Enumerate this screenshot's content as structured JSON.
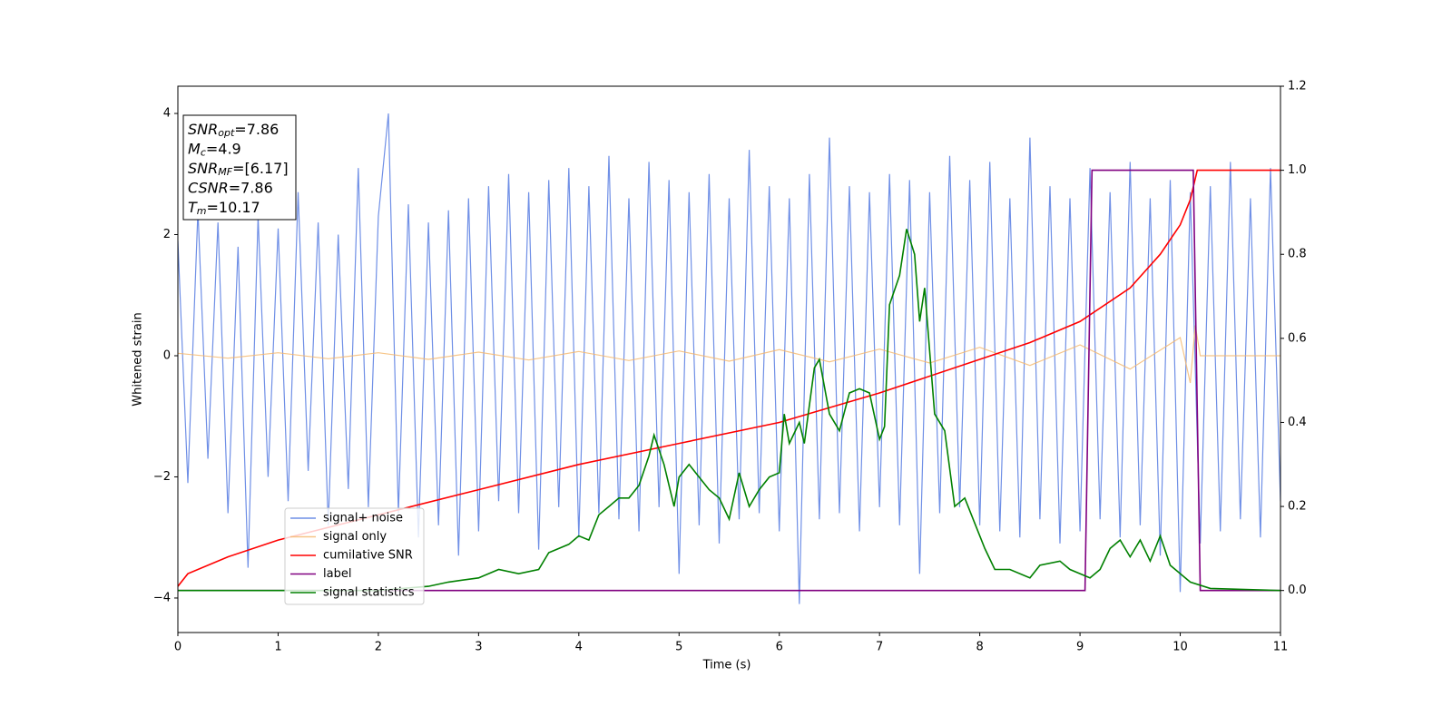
{
  "chart_data": {
    "type": "line",
    "xlabel": "Time (s)",
    "ylabel": "Whitened strain",
    "xlim": [
      0,
      11
    ],
    "xticks": [
      0,
      1,
      2,
      3,
      4,
      5,
      6,
      7,
      8,
      9,
      10,
      11
    ],
    "ylim": [
      -4.57,
      4.45
    ],
    "yticks": [
      {
        "value": -4,
        "label": "−4"
      },
      {
        "value": -2,
        "label": "−2"
      },
      0,
      2,
      4
    ],
    "y2lim": [
      -0.1,
      1.2
    ],
    "y2ticks": [
      {
        "value": 0,
        "label": "0.0"
      },
      {
        "value": 0.2,
        "label": "0.2"
      },
      {
        "value": 0.4,
        "label": "0.4"
      },
      {
        "value": 0.6,
        "label": "0.6"
      },
      {
        "value": 0.8,
        "label": "0.8"
      },
      {
        "value": 1.0,
        "label": "1.0"
      },
      {
        "value": 1.2,
        "label": "1.2"
      }
    ],
    "legend": "lower left",
    "annotation": [
      {
        "base": "SNR",
        "sub": "opt",
        "rest": "=7.86"
      },
      {
        "base": "M",
        "sub": "c",
        "rest": "=4.9"
      },
      {
        "base": "SNR",
        "sub": "MF",
        "rest": "=[6.17]"
      },
      {
        "base": "CSNR",
        "sub": "",
        "rest": "=7.86"
      },
      {
        "base": "T",
        "sub": "m",
        "rest": "=10.17"
      }
    ],
    "series": [
      {
        "name": "signal+ noise",
        "color": "#6f8fe6",
        "axis": "y",
        "x": [
          0,
          0.1,
          0.2,
          0.3,
          0.4,
          0.5,
          0.6,
          0.7,
          0.8,
          0.9,
          1,
          1.1,
          1.2,
          1.3,
          1.4,
          1.5,
          1.6,
          1.7,
          1.8,
          1.9,
          2,
          2.1,
          2.2,
          2.3,
          2.4,
          2.5,
          2.6,
          2.7,
          2.8,
          2.9,
          3,
          3.1,
          3.2,
          3.3,
          3.4,
          3.5,
          3.6,
          3.7,
          3.8,
          3.9,
          4,
          4.1,
          4.2,
          4.3,
          4.4,
          4.5,
          4.6,
          4.7,
          4.8,
          4.9,
          5,
          5.1,
          5.2,
          5.3,
          5.4,
          5.5,
          5.6,
          5.7,
          5.8,
          5.9,
          6,
          6.1,
          6.2,
          6.3,
          6.4,
          6.5,
          6.6,
          6.7,
          6.8,
          6.9,
          7,
          7.1,
          7.2,
          7.3,
          7.4,
          7.5,
          7.6,
          7.7,
          7.8,
          7.9,
          8,
          8.1,
          8.2,
          8.3,
          8.4,
          8.5,
          8.6,
          8.7,
          8.8,
          8.9,
          9,
          9.1,
          9.2,
          9.3,
          9.4,
          9.5,
          9.6,
          9.7,
          9.8,
          9.9,
          10,
          10.1,
          10.2,
          10.3,
          10.4,
          10.5,
          10.6,
          10.7,
          10.8,
          10.9,
          11
        ],
        "values": [
          1.9,
          -2.1,
          2.4,
          -1.7,
          2.2,
          -2.6,
          1.8,
          -3.5,
          2.3,
          -2.0,
          2.1,
          -2.4,
          2.7,
          -1.9,
          2.2,
          -2.8,
          2.0,
          -2.2,
          3.1,
          -2.5,
          2.3,
          4.0,
          -2.6,
          2.5,
          -3.0,
          2.2,
          -2.8,
          2.4,
          -3.3,
          2.6,
          -2.9,
          2.8,
          -2.4,
          3.0,
          -2.6,
          2.7,
          -3.2,
          2.9,
          -2.5,
          3.1,
          -3.0,
          2.8,
          -2.6,
          3.3,
          -2.7,
          2.6,
          -2.9,
          3.2,
          -2.5,
          2.9,
          -3.6,
          2.7,
          -2.8,
          3.0,
          -3.1,
          2.6,
          -2.7,
          3.4,
          -2.6,
          2.8,
          -2.9,
          2.6,
          -4.1,
          3.0,
          -2.7,
          3.6,
          -2.6,
          2.8,
          -2.9,
          2.7,
          -2.5,
          3.0,
          -2.8,
          2.9,
          -3.6,
          2.7,
          -2.6,
          3.3,
          -2.5,
          2.9,
          -2.8,
          3.2,
          -2.9,
          2.6,
          -3.0,
          3.6,
          -2.7,
          2.8,
          -3.1,
          2.6,
          -2.9,
          3.1,
          -2.7,
          2.7,
          -3.0,
          3.2,
          -2.8,
          2.6,
          -3.3,
          2.9,
          -3.9,
          2.7,
          -3.1,
          2.8,
          -2.9,
          3.2,
          -2.7,
          2.6,
          -3.0,
          3.1,
          -2.4
        ]
      },
      {
        "name": "signal only",
        "color": "#f5b66a",
        "axis": "y",
        "x": [
          0,
          0.5,
          1,
          1.5,
          2,
          2.5,
          3,
          3.5,
          4,
          4.5,
          5,
          5.5,
          6,
          6.5,
          7,
          7.5,
          8,
          8.5,
          9,
          9.5,
          10,
          10.1,
          10.15,
          10.2,
          11
        ],
        "values": [
          0.04,
          -0.04,
          0.05,
          -0.05,
          0.05,
          -0.06,
          0.06,
          -0.07,
          0.07,
          -0.08,
          0.08,
          -0.09,
          0.1,
          -0.1,
          0.11,
          -0.12,
          0.14,
          -0.16,
          0.18,
          -0.22,
          0.3,
          -0.45,
          0.5,
          0,
          0
        ]
      },
      {
        "name": "cumilative SNR",
        "color": "#ff0000",
        "axis": "y2",
        "x": [
          0,
          0.1,
          0.5,
          1,
          2,
          3,
          4,
          5,
          6,
          7,
          8,
          8.5,
          9,
          9.5,
          9.8,
          10,
          10.1,
          10.17,
          11
        ],
        "values": [
          0.01,
          0.04,
          0.08,
          0.12,
          0.18,
          0.24,
          0.3,
          0.35,
          0.4,
          0.47,
          0.55,
          0.59,
          0.64,
          0.72,
          0.8,
          0.87,
          0.93,
          1.0,
          1.0
        ]
      },
      {
        "name": "label",
        "color": "#800080",
        "axis": "y2",
        "x": [
          0,
          9.05,
          9.12,
          10.13,
          10.2,
          11
        ],
        "values": [
          0,
          0,
          1,
          1,
          0,
          0
        ]
      },
      {
        "name": "signal statistics",
        "color": "#008000",
        "axis": "y2",
        "x": [
          0,
          1,
          2,
          2.5,
          2.7,
          3.0,
          3.2,
          3.4,
          3.6,
          3.7,
          3.9,
          4.0,
          4.1,
          4.2,
          4.3,
          4.4,
          4.5,
          4.6,
          4.7,
          4.75,
          4.85,
          4.95,
          5.0,
          5.1,
          5.2,
          5.3,
          5.4,
          5.5,
          5.6,
          5.7,
          5.8,
          5.9,
          6.0,
          6.05,
          6.1,
          6.2,
          6.25,
          6.35,
          6.4,
          6.5,
          6.6,
          6.7,
          6.8,
          6.9,
          7.0,
          7.05,
          7.1,
          7.2,
          7.27,
          7.35,
          7.4,
          7.45,
          7.55,
          7.65,
          7.75,
          7.85,
          7.95,
          8.05,
          8.15,
          8.3,
          8.5,
          8.6,
          8.8,
          8.9,
          9.1,
          9.2,
          9.3,
          9.4,
          9.5,
          9.6,
          9.7,
          9.8,
          9.9,
          10.1,
          10.3,
          11
        ],
        "values": [
          0,
          0,
          0,
          0.01,
          0.02,
          0.03,
          0.05,
          0.04,
          0.05,
          0.09,
          0.11,
          0.13,
          0.12,
          0.18,
          0.2,
          0.22,
          0.22,
          0.25,
          0.32,
          0.37,
          0.3,
          0.2,
          0.27,
          0.3,
          0.27,
          0.24,
          0.22,
          0.17,
          0.28,
          0.2,
          0.24,
          0.27,
          0.28,
          0.42,
          0.35,
          0.4,
          0.35,
          0.53,
          0.55,
          0.42,
          0.38,
          0.47,
          0.48,
          0.47,
          0.36,
          0.39,
          0.68,
          0.75,
          0.86,
          0.8,
          0.64,
          0.72,
          0.42,
          0.38,
          0.2,
          0.22,
          0.16,
          0.1,
          0.05,
          0.05,
          0.03,
          0.06,
          0.07,
          0.05,
          0.03,
          0.05,
          0.1,
          0.12,
          0.08,
          0.12,
          0.07,
          0.13,
          0.06,
          0.02,
          0.005,
          0
        ]
      }
    ]
  }
}
